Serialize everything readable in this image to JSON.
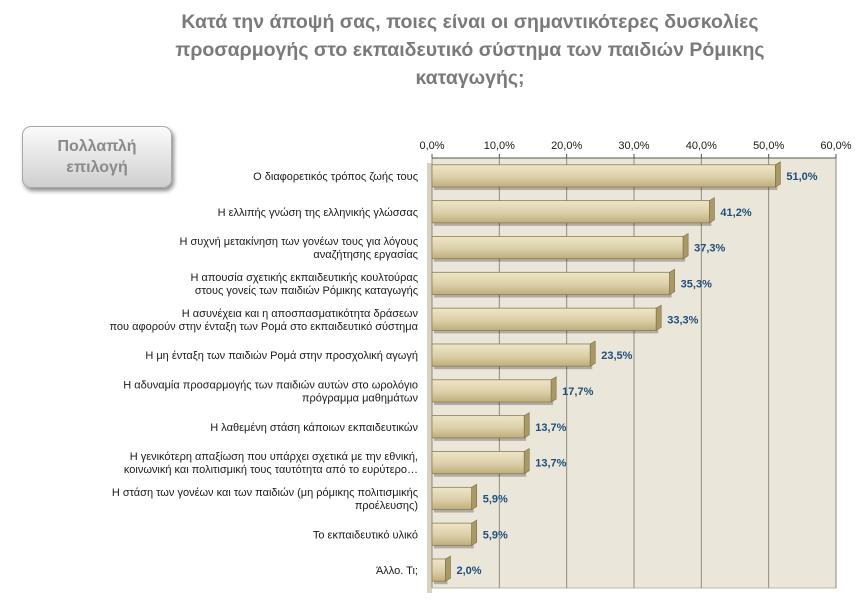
{
  "title_lines": [
    "Κατά την άποψή σας, ποιες είναι οι σημαντικότερες δυσκολίες",
    "προσαρμογής στο εκπαιδευτικό σύστημα των παιδιών Ρόμικης",
    "καταγωγής;"
  ],
  "badge": {
    "line1": "Πολλαπλή",
    "line2": "επιλογή"
  },
  "colors": {
    "plot_bg": "#ebe6da",
    "bar_fill": "#dccfa8",
    "bar_dark": "#a99966",
    "value": "#1f4e79",
    "title": "#7a7a7a"
  },
  "chart_data": {
    "type": "bar",
    "orientation": "horizontal",
    "title": "Κατά την άποψή σας, ποιες είναι οι σημαντικότερες δυσκολίες προσαρμογής στο εκπαιδευτικό σύστημα των παιδιών Ρόμικης καταγωγής;",
    "categories": [
      [
        "Ο διαφορετικός τρόπος ζωής τους"
      ],
      [
        "Η ελλιπής γνώση της ελληνικής γλώσσας"
      ],
      [
        "Η συχνή μετακίνηση των γονέων τους για λόγους",
        "αναζήτησης εργασίας"
      ],
      [
        "Η απουσία σχετικής εκπαιδευτικής κουλτούρας",
        "στους γονείς των παιδιών Ρόμικης καταγωγής"
      ],
      [
        "Η ασυνέχεια και η αποσπασματικότητα  δράσεων",
        "που αφορούν στην ένταξη των Ρομά στο εκπαιδευτικό σύστημα"
      ],
      [
        "Η μη ένταξη των παιδιών Ρομά στην προσχολική αγωγή"
      ],
      [
        "Η αδυναμία προσαρμογής των παιδιών αυτών στο ωρολόγιο",
        "πρόγραμμα μαθημάτων"
      ],
      [
        "Η λαθεμένη στάση κάποιων εκπαιδευτικών"
      ],
      [
        "Η γενικότερη απαξίωση που υπάρχει σχετικά με την εθνική,",
        "κοινωνική και πολιτισμική τους ταυτότητα  από το ευρύτερο…"
      ],
      [
        "Η στάση των γονέων και των παιδιών (μη ρόμικης πολιτισμικής",
        "προέλευσης)"
      ],
      [
        "Το εκπαιδευτικό υλικό"
      ],
      [
        "Άλλο. Τι;"
      ]
    ],
    "values": [
      51.0,
      41.2,
      37.3,
      35.3,
      33.3,
      23.5,
      17.7,
      13.7,
      13.7,
      5.9,
      5.9,
      2.0
    ],
    "value_labels": [
      "51,0%",
      "41,2%",
      "37,3%",
      "35,3%",
      "33,3%",
      "23,5%",
      "17,7%",
      "13,7%",
      "13,7%",
      "5,9%",
      "5,9%",
      "2,0%"
    ],
    "xlim": [
      0,
      60
    ],
    "ticks": [
      0,
      10,
      20,
      30,
      40,
      50,
      60
    ],
    "tick_labels": [
      "0,0%",
      "10,0%",
      "20,0%",
      "30,0%",
      "40,0%",
      "50,0%",
      "60,0%"
    ],
    "axis_position": "top",
    "grid": true,
    "legend": false
  }
}
